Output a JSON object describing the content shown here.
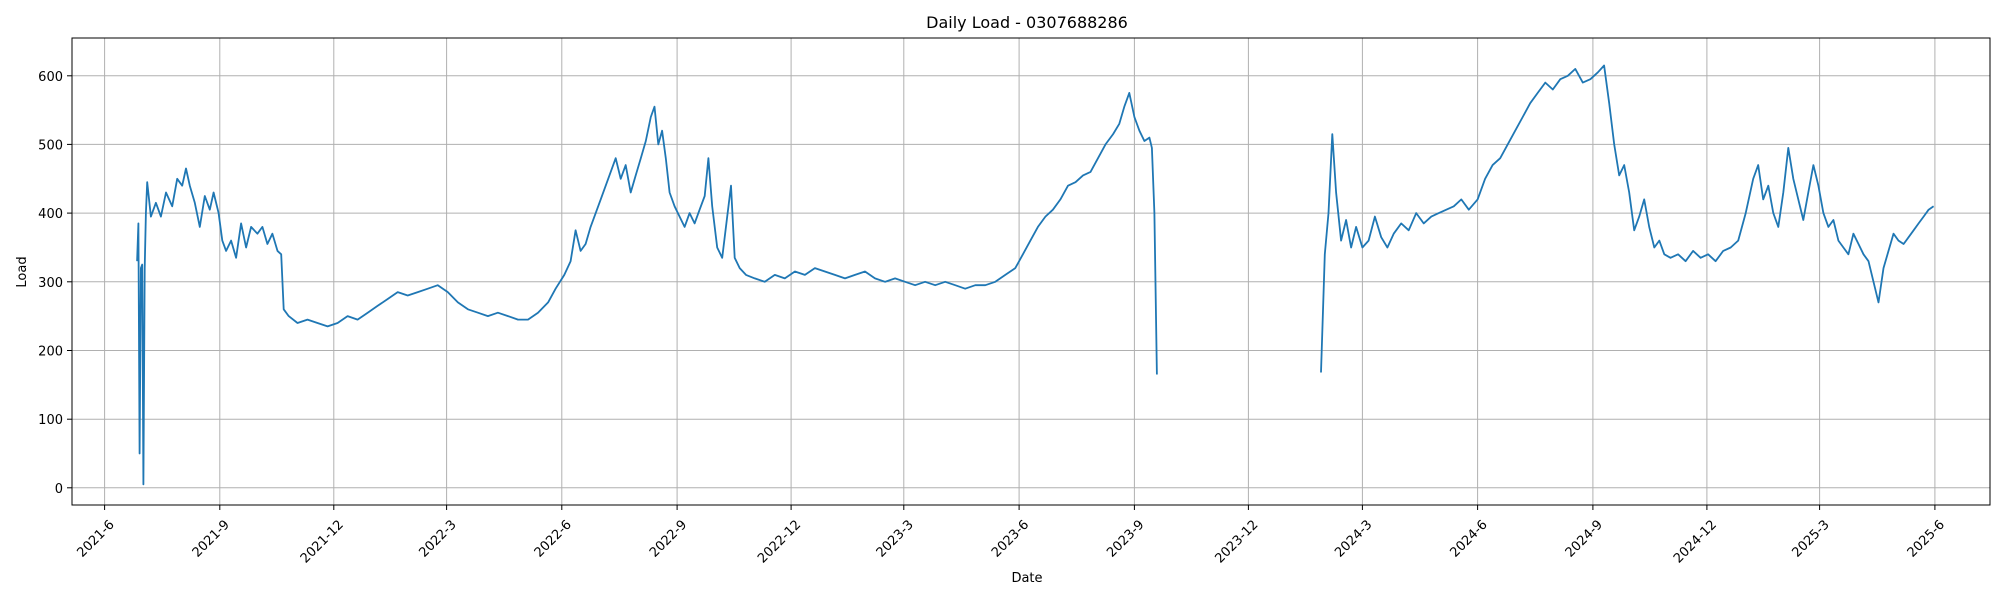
{
  "chart_data": {
    "type": "line",
    "title": "Daily Load - 0307688286",
    "xlabel": "Date",
    "ylabel": "Load",
    "ylim": [
      -25,
      655
    ],
    "xlim": [
      "2021-05-06",
      "2025-07-15"
    ],
    "grid": true,
    "legend": "none",
    "x_ticks": [
      "2021-6",
      "2021-9",
      "2021-12",
      "2022-3",
      "2022-6",
      "2022-9",
      "2022-12",
      "2023-3",
      "2023-6",
      "2023-9",
      "2023-12",
      "2024-3",
      "2024-6",
      "2024-9",
      "2024-12",
      "2025-3",
      "2025-6"
    ],
    "y_ticks": [
      0,
      100,
      200,
      300,
      400,
      500,
      600
    ],
    "series": [
      {
        "color": "#1f77b4",
        "points": [
          [
            "2021-06-27",
            330
          ],
          [
            "2021-06-28",
            385
          ],
          [
            "2021-06-29",
            50
          ],
          [
            "2021-06-30",
            320
          ],
          [
            "2021-07-01",
            325
          ],
          [
            "2021-07-02",
            5
          ],
          [
            "2021-07-03",
            320
          ],
          [
            "2021-07-04",
            400
          ],
          [
            "2021-07-05",
            445
          ],
          [
            "2021-07-08",
            395
          ],
          [
            "2021-07-12",
            415
          ],
          [
            "2021-07-16",
            395
          ],
          [
            "2021-07-20",
            430
          ],
          [
            "2021-07-25",
            410
          ],
          [
            "2021-07-29",
            450
          ],
          [
            "2021-08-02",
            440
          ],
          [
            "2021-08-05",
            465
          ],
          [
            "2021-08-08",
            440
          ],
          [
            "2021-08-12",
            415
          ],
          [
            "2021-08-16",
            380
          ],
          [
            "2021-08-20",
            425
          ],
          [
            "2021-08-24",
            405
          ],
          [
            "2021-08-27",
            430
          ],
          [
            "2021-08-31",
            400
          ],
          [
            "2021-09-03",
            360
          ],
          [
            "2021-09-06",
            345
          ],
          [
            "2021-09-10",
            360
          ],
          [
            "2021-09-14",
            335
          ],
          [
            "2021-09-18",
            385
          ],
          [
            "2021-09-22",
            350
          ],
          [
            "2021-09-26",
            380
          ],
          [
            "2021-10-01",
            370
          ],
          [
            "2021-10-05",
            380
          ],
          [
            "2021-10-09",
            355
          ],
          [
            "2021-10-13",
            370
          ],
          [
            "2021-10-17",
            345
          ],
          [
            "2021-10-20",
            340
          ],
          [
            "2021-10-22",
            260
          ],
          [
            "2021-10-26",
            250
          ],
          [
            "2021-11-02",
            240
          ],
          [
            "2021-11-10",
            245
          ],
          [
            "2021-11-18",
            240
          ],
          [
            "2021-11-26",
            235
          ],
          [
            "2021-12-04",
            240
          ],
          [
            "2021-12-12",
            250
          ],
          [
            "2021-12-20",
            245
          ],
          [
            "2021-12-28",
            255
          ],
          [
            "2022-01-05",
            265
          ],
          [
            "2022-01-13",
            275
          ],
          [
            "2022-01-21",
            285
          ],
          [
            "2022-01-29",
            280
          ],
          [
            "2022-02-06",
            285
          ],
          [
            "2022-02-14",
            290
          ],
          [
            "2022-02-22",
            295
          ],
          [
            "2022-03-02",
            285
          ],
          [
            "2022-03-10",
            270
          ],
          [
            "2022-03-18",
            260
          ],
          [
            "2022-03-26",
            255
          ],
          [
            "2022-04-03",
            250
          ],
          [
            "2022-04-11",
            255
          ],
          [
            "2022-04-19",
            250
          ],
          [
            "2022-04-27",
            245
          ],
          [
            "2022-05-05",
            245
          ],
          [
            "2022-05-13",
            255
          ],
          [
            "2022-05-21",
            270
          ],
          [
            "2022-05-27",
            290
          ],
          [
            "2022-06-03",
            310
          ],
          [
            "2022-06-08",
            330
          ],
          [
            "2022-06-12",
            375
          ],
          [
            "2022-06-16",
            345
          ],
          [
            "2022-06-20",
            355
          ],
          [
            "2022-06-24",
            380
          ],
          [
            "2022-06-28",
            400
          ],
          [
            "2022-07-02",
            420
          ],
          [
            "2022-07-06",
            440
          ],
          [
            "2022-07-10",
            460
          ],
          [
            "2022-07-14",
            480
          ],
          [
            "2022-07-18",
            450
          ],
          [
            "2022-07-22",
            470
          ],
          [
            "2022-07-26",
            430
          ],
          [
            "2022-07-30",
            455
          ],
          [
            "2022-08-03",
            480
          ],
          [
            "2022-08-07",
            505
          ],
          [
            "2022-08-11",
            540
          ],
          [
            "2022-08-14",
            555
          ],
          [
            "2022-08-17",
            500
          ],
          [
            "2022-08-20",
            520
          ],
          [
            "2022-08-23",
            480
          ],
          [
            "2022-08-26",
            430
          ],
          [
            "2022-08-30",
            410
          ],
          [
            "2022-09-03",
            395
          ],
          [
            "2022-09-07",
            380
          ],
          [
            "2022-09-11",
            400
          ],
          [
            "2022-09-15",
            385
          ],
          [
            "2022-09-19",
            405
          ],
          [
            "2022-09-23",
            425
          ],
          [
            "2022-09-26",
            480
          ],
          [
            "2022-09-29",
            410
          ],
          [
            "2022-10-03",
            350
          ],
          [
            "2022-10-07",
            335
          ],
          [
            "2022-10-11",
            395
          ],
          [
            "2022-10-14",
            440
          ],
          [
            "2022-10-17",
            335
          ],
          [
            "2022-10-21",
            320
          ],
          [
            "2022-10-26",
            310
          ],
          [
            "2022-11-02",
            305
          ],
          [
            "2022-11-10",
            300
          ],
          [
            "2022-11-18",
            310
          ],
          [
            "2022-11-26",
            305
          ],
          [
            "2022-12-04",
            315
          ],
          [
            "2022-12-12",
            310
          ],
          [
            "2022-12-20",
            320
          ],
          [
            "2022-12-28",
            315
          ],
          [
            "2023-01-05",
            310
          ],
          [
            "2023-01-13",
            305
          ],
          [
            "2023-01-21",
            310
          ],
          [
            "2023-01-29",
            315
          ],
          [
            "2023-02-06",
            305
          ],
          [
            "2023-02-14",
            300
          ],
          [
            "2023-02-22",
            305
          ],
          [
            "2023-03-02",
            300
          ],
          [
            "2023-03-10",
            295
          ],
          [
            "2023-03-18",
            300
          ],
          [
            "2023-03-26",
            295
          ],
          [
            "2023-04-03",
            300
          ],
          [
            "2023-04-11",
            295
          ],
          [
            "2023-04-19",
            290
          ],
          [
            "2023-04-27",
            295
          ],
          [
            "2023-05-05",
            295
          ],
          [
            "2023-05-13",
            300
          ],
          [
            "2023-05-21",
            310
          ],
          [
            "2023-05-29",
            320
          ],
          [
            "2023-06-04",
            340
          ],
          [
            "2023-06-10",
            360
          ],
          [
            "2023-06-16",
            380
          ],
          [
            "2023-06-22",
            395
          ],
          [
            "2023-06-28",
            405
          ],
          [
            "2023-07-04",
            420
          ],
          [
            "2023-07-10",
            440
          ],
          [
            "2023-07-16",
            445
          ],
          [
            "2023-07-22",
            455
          ],
          [
            "2023-07-28",
            460
          ],
          [
            "2023-08-03",
            480
          ],
          [
            "2023-08-09",
            500
          ],
          [
            "2023-08-15",
            515
          ],
          [
            "2023-08-20",
            530
          ],
          [
            "2023-08-24",
            555
          ],
          [
            "2023-08-28",
            575
          ],
          [
            "2023-09-01",
            540
          ],
          [
            "2023-09-05",
            520
          ],
          [
            "2023-09-09",
            505
          ],
          [
            "2023-09-13",
            510
          ],
          [
            "2023-09-15",
            495
          ],
          [
            "2023-09-17",
            400
          ],
          [
            "2023-09-19",
            165
          ],
          null,
          [
            "2024-01-28",
            168
          ],
          [
            "2024-01-31",
            340
          ],
          [
            "2024-02-03",
            400
          ],
          [
            "2024-02-06",
            515
          ],
          [
            "2024-02-09",
            430
          ],
          [
            "2024-02-13",
            360
          ],
          [
            "2024-02-17",
            390
          ],
          [
            "2024-02-21",
            350
          ],
          [
            "2024-02-25",
            380
          ],
          [
            "2024-03-01",
            350
          ],
          [
            "2024-03-06",
            360
          ],
          [
            "2024-03-11",
            395
          ],
          [
            "2024-03-16",
            365
          ],
          [
            "2024-03-21",
            350
          ],
          [
            "2024-03-26",
            370
          ],
          [
            "2024-04-01",
            385
          ],
          [
            "2024-04-07",
            375
          ],
          [
            "2024-04-13",
            400
          ],
          [
            "2024-04-19",
            385
          ],
          [
            "2024-04-25",
            395
          ],
          [
            "2024-05-01",
            400
          ],
          [
            "2024-05-07",
            405
          ],
          [
            "2024-05-13",
            410
          ],
          [
            "2024-05-19",
            420
          ],
          [
            "2024-05-25",
            405
          ],
          [
            "2024-06-01",
            420
          ],
          [
            "2024-06-07",
            450
          ],
          [
            "2024-06-13",
            470
          ],
          [
            "2024-06-19",
            480
          ],
          [
            "2024-06-25",
            500
          ],
          [
            "2024-07-01",
            520
          ],
          [
            "2024-07-07",
            540
          ],
          [
            "2024-07-13",
            560
          ],
          [
            "2024-07-19",
            575
          ],
          [
            "2024-07-25",
            590
          ],
          [
            "2024-07-31",
            580
          ],
          [
            "2024-08-06",
            595
          ],
          [
            "2024-08-12",
            600
          ],
          [
            "2024-08-18",
            610
          ],
          [
            "2024-08-24",
            590
          ],
          [
            "2024-08-30",
            595
          ],
          [
            "2024-09-05",
            605
          ],
          [
            "2024-09-10",
            615
          ],
          [
            "2024-09-14",
            560
          ],
          [
            "2024-09-18",
            500
          ],
          [
            "2024-09-22",
            455
          ],
          [
            "2024-09-26",
            470
          ],
          [
            "2024-09-30",
            430
          ],
          [
            "2024-10-04",
            375
          ],
          [
            "2024-10-08",
            395
          ],
          [
            "2024-10-12",
            420
          ],
          [
            "2024-10-16",
            380
          ],
          [
            "2024-10-20",
            350
          ],
          [
            "2024-10-24",
            360
          ],
          [
            "2024-10-28",
            340
          ],
          [
            "2024-11-02",
            335
          ],
          [
            "2024-11-08",
            340
          ],
          [
            "2024-11-14",
            330
          ],
          [
            "2024-11-20",
            345
          ],
          [
            "2024-11-26",
            335
          ],
          [
            "2024-12-02",
            340
          ],
          [
            "2024-12-08",
            330
          ],
          [
            "2024-12-14",
            345
          ],
          [
            "2024-12-20",
            350
          ],
          [
            "2024-12-26",
            360
          ],
          [
            "2025-01-01",
            400
          ],
          [
            "2025-01-07",
            450
          ],
          [
            "2025-01-11",
            470
          ],
          [
            "2025-01-15",
            420
          ],
          [
            "2025-01-19",
            440
          ],
          [
            "2025-01-23",
            400
          ],
          [
            "2025-01-27",
            380
          ],
          [
            "2025-01-31",
            430
          ],
          [
            "2025-02-04",
            495
          ],
          [
            "2025-02-08",
            450
          ],
          [
            "2025-02-12",
            420
          ],
          [
            "2025-02-16",
            390
          ],
          [
            "2025-02-20",
            430
          ],
          [
            "2025-02-24",
            470
          ],
          [
            "2025-02-28",
            440
          ],
          [
            "2025-03-04",
            400
          ],
          [
            "2025-03-08",
            380
          ],
          [
            "2025-03-12",
            390
          ],
          [
            "2025-03-16",
            360
          ],
          [
            "2025-03-20",
            350
          ],
          [
            "2025-03-24",
            340
          ],
          [
            "2025-03-28",
            370
          ],
          [
            "2025-04-01",
            355
          ],
          [
            "2025-04-05",
            340
          ],
          [
            "2025-04-09",
            330
          ],
          [
            "2025-04-13",
            300
          ],
          [
            "2025-04-17",
            270
          ],
          [
            "2025-04-21",
            320
          ],
          [
            "2025-04-25",
            345
          ],
          [
            "2025-04-29",
            370
          ],
          [
            "2025-05-03",
            360
          ],
          [
            "2025-05-07",
            355
          ],
          [
            "2025-05-11",
            365
          ],
          [
            "2025-05-15",
            375
          ],
          [
            "2025-05-19",
            385
          ],
          [
            "2025-05-23",
            395
          ],
          [
            "2025-05-27",
            405
          ],
          [
            "2025-05-31",
            410
          ]
        ]
      }
    ]
  }
}
